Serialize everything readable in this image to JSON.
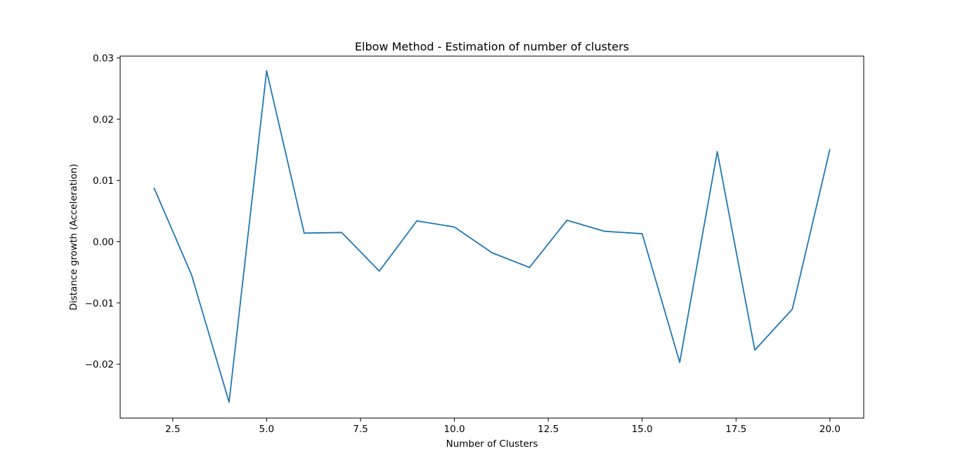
{
  "chart_data": {
    "type": "line",
    "title": "Elbow Method - Estimation of number of clusters",
    "xlabel": "Number of Clusters",
    "ylabel": "Distance growth (Acceleration)",
    "xlim": [
      1.1,
      20.9
    ],
    "ylim": [
      -0.0288,
      0.0303
    ],
    "xticks": [
      2.5,
      5.0,
      7.5,
      10.0,
      12.5,
      15.0,
      17.5,
      20.0
    ],
    "xtick_labels": [
      "2.5",
      "5.0",
      "7.5",
      "10.0",
      "12.5",
      "15.0",
      "17.5",
      "20.0"
    ],
    "yticks": [
      -0.02,
      -0.01,
      0.0,
      0.01,
      0.02,
      0.03
    ],
    "ytick_labels": [
      "−0.02",
      "−0.01",
      "0.00",
      "0.01",
      "0.02",
      "0.03"
    ],
    "grid": false,
    "series": [
      {
        "color": "#1f77b4",
        "x": [
          2,
          3,
          4,
          5,
          6,
          7,
          8,
          9,
          10,
          11,
          12,
          13,
          14,
          15,
          16,
          17,
          18,
          19,
          20
        ],
        "y": [
          0.0088,
          -0.0054,
          -0.0262,
          0.0279,
          0.0014,
          0.0015,
          -0.0048,
          0.0034,
          0.0024,
          -0.0018,
          -0.0042,
          0.0035,
          0.0017,
          0.0013,
          -0.0197,
          0.0147,
          -0.0177,
          -0.011,
          0.0151
        ]
      }
    ]
  }
}
